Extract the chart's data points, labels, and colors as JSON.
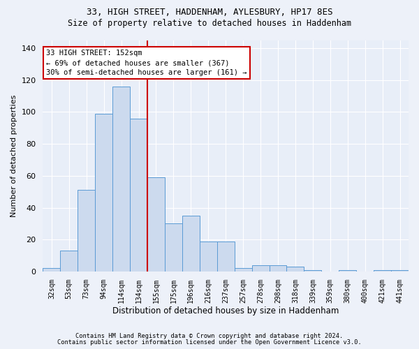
{
  "title1": "33, HIGH STREET, HADDENHAM, AYLESBURY, HP17 8ES",
  "title2": "Size of property relative to detached houses in Haddenham",
  "xlabel": "Distribution of detached houses by size in Haddenham",
  "ylabel": "Number of detached properties",
  "categories": [
    "32sqm",
    "53sqm",
    "73sqm",
    "94sqm",
    "114sqm",
    "134sqm",
    "155sqm",
    "175sqm",
    "196sqm",
    "216sqm",
    "237sqm",
    "257sqm",
    "278sqm",
    "298sqm",
    "318sqm",
    "339sqm",
    "359sqm",
    "380sqm",
    "400sqm",
    "421sqm",
    "441sqm"
  ],
  "values": [
    2,
    13,
    51,
    99,
    116,
    96,
    59,
    30,
    35,
    19,
    19,
    2,
    4,
    4,
    3,
    1,
    0,
    1,
    0,
    1,
    1
  ],
  "bar_color": "#ccdaee",
  "bar_edge_color": "#5b9bd5",
  "vline_x": 5.5,
  "vline_color": "#cc0000",
  "annotation_text": "33 HIGH STREET: 152sqm\n← 69% of detached houses are smaller (367)\n30% of semi-detached houses are larger (161) →",
  "annotation_box_color": "white",
  "annotation_box_edge_color": "#cc0000",
  "ylim": [
    0,
    145
  ],
  "yticks": [
    0,
    20,
    40,
    60,
    80,
    100,
    120,
    140
  ],
  "footer1": "Contains HM Land Registry data © Crown copyright and database right 2024.",
  "footer2": "Contains public sector information licensed under the Open Government Licence v3.0.",
  "fig_bg_color": "#edf1f9",
  "plot_bg_color": "#e8eef8",
  "grid_color": "#ffffff",
  "title1_fontsize": 9,
  "title2_fontsize": 8.5,
  "ylabel_fontsize": 8,
  "xlabel_fontsize": 8.5,
  "tick_fontsize": 7,
  "annotation_fontsize": 7.5,
  "footer_fontsize": 6.2
}
